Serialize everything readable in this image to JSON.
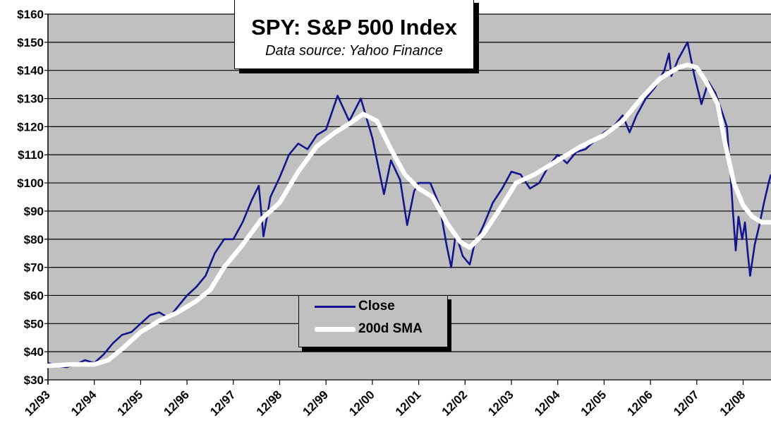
{
  "chart_data": {
    "type": "line",
    "title": "SPY: S&P 500 Index",
    "subtitle": "Data source: Yahoo Finance",
    "xlabel": "",
    "ylabel": "",
    "ylim": [
      30,
      160
    ],
    "xlim_years_since_dec1993": [
      0,
      15.6
    ],
    "grid": true,
    "legend_placement": "bottom-center",
    "y_ticks": [
      "$30",
      "$40",
      "$50",
      "$60",
      "$70",
      "$80",
      "$90",
      "$100",
      "$110",
      "$120",
      "$130",
      "$140",
      "$150",
      "$160"
    ],
    "y_tick_values": [
      30,
      40,
      50,
      60,
      70,
      80,
      90,
      100,
      110,
      120,
      130,
      140,
      150,
      160
    ],
    "x_ticks": [
      "12/93",
      "12/94",
      "12/95",
      "12/96",
      "12/97",
      "12/98",
      "12/99",
      "12/00",
      "12/01",
      "12/02",
      "12/03",
      "12/04",
      "12/05",
      "12/06",
      "12/07",
      "12/08"
    ],
    "colors": {
      "close": "#14148c",
      "sma": "#ffffff",
      "plot_bg": "#c0c0c0"
    },
    "series": [
      {
        "name": "Close",
        "x": [
          0,
          0.2,
          0.4,
          0.6,
          0.8,
          1.0,
          1.2,
          1.4,
          1.6,
          1.8,
          2.0,
          2.2,
          2.4,
          2.6,
          2.8,
          3.0,
          3.2,
          3.4,
          3.6,
          3.8,
          4.0,
          4.2,
          4.4,
          4.55,
          4.65,
          4.8,
          5.0,
          5.2,
          5.4,
          5.6,
          5.8,
          6.0,
          6.25,
          6.5,
          6.75,
          7.0,
          7.25,
          7.4,
          7.6,
          7.75,
          7.9,
          8.0,
          8.25,
          8.45,
          8.6,
          8.7,
          8.8,
          8.95,
          9.1,
          9.2,
          9.4,
          9.6,
          9.8,
          10.0,
          10.2,
          10.4,
          10.6,
          10.8,
          11.0,
          11.2,
          11.4,
          11.6,
          11.8,
          12.0,
          12.2,
          12.4,
          12.55,
          12.7,
          12.9,
          13.1,
          13.3,
          13.4,
          13.45,
          13.6,
          13.8,
          13.95,
          14.1,
          14.25,
          14.4,
          14.55,
          14.65,
          14.72,
          14.78,
          14.84,
          14.9,
          14.98,
          15.04,
          15.1,
          15.15,
          15.25,
          15.35,
          15.45,
          15.55,
          15.6
        ],
        "values": [
          36,
          35,
          34.5,
          35.5,
          37,
          36,
          39,
          43,
          46,
          47,
          50,
          53,
          54,
          52,
          56,
          60,
          63,
          67,
          75,
          80,
          80,
          86,
          94,
          99,
          81,
          95,
          102,
          110,
          114,
          112,
          117,
          119,
          131,
          122,
          130,
          116,
          96,
          108,
          101,
          85,
          97,
          100,
          100,
          92,
          78,
          70,
          82,
          74,
          71,
          78,
          85,
          93,
          98,
          104,
          103,
          98,
          100,
          106,
          110,
          107,
          111,
          112,
          115,
          118,
          120,
          124,
          118,
          124,
          130,
          134,
          140,
          146,
          138,
          144,
          150,
          138,
          128,
          136,
          132,
          125,
          120,
          105,
          90,
          76,
          88,
          80,
          86,
          75,
          67,
          78,
          85,
          93,
          100,
          103
        ]
      },
      {
        "name": "200d SMA",
        "x": [
          0,
          0.5,
          1.0,
          1.3,
          1.6,
          2.0,
          2.4,
          2.8,
          3.2,
          3.5,
          3.8,
          4.2,
          4.6,
          5.0,
          5.4,
          5.8,
          6.2,
          6.5,
          6.8,
          7.1,
          7.4,
          7.7,
          8.0,
          8.3,
          8.6,
          8.9,
          9.1,
          9.4,
          9.8,
          10.1,
          10.5,
          11.0,
          11.5,
          12.0,
          12.4,
          12.8,
          13.2,
          13.6,
          13.8,
          14.0,
          14.2,
          14.45,
          14.6,
          14.8,
          15.0,
          15.2,
          15.4,
          15.6
        ],
        "values": [
          35,
          35.5,
          35.5,
          37,
          41,
          47,
          51,
          54,
          58,
          62,
          70,
          78,
          87,
          93,
          104,
          113,
          118,
          121,
          124.5,
          122,
          112,
          103,
          98,
          95,
          86,
          79,
          77,
          82,
          92,
          100,
          103,
          108,
          113,
          117,
          122,
          130,
          137,
          141,
          142,
          141,
          136,
          128,
          115,
          100,
          92,
          88,
          86,
          86
        ]
      }
    ]
  }
}
